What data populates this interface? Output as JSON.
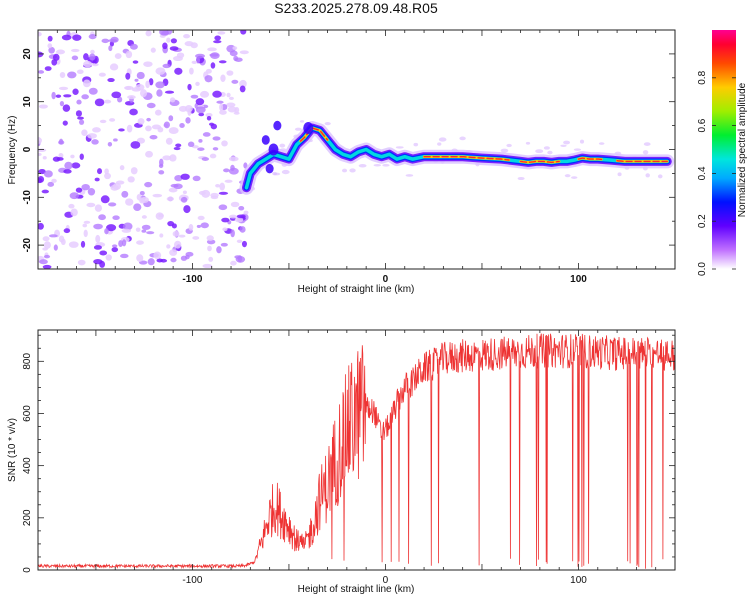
{
  "title": "S233.2025.278.09.48.R05",
  "chart_data": [
    {
      "type": "heatmap",
      "name": "spectrogram",
      "xlabel": "Height of straight line (km)",
      "ylabel": "Frequency (Hz)",
      "xlim": [
        -180,
        150
      ],
      "ylim": [
        -25,
        25
      ],
      "xticks": [
        -100,
        0,
        100
      ],
      "yticks": [
        -20,
        -10,
        0,
        10,
        20
      ],
      "noise_region_x": [
        -180,
        -72
      ],
      "ridge": {
        "x": [
          -72,
          -70,
          -66,
          -62,
          -58,
          -54,
          -50,
          -46,
          -42,
          -38,
          -34,
          -30,
          -26,
          -22,
          -18,
          -14,
          -10,
          -6,
          -2,
          2,
          6,
          10,
          14,
          20,
          30,
          40,
          50,
          60,
          66,
          70,
          74,
          78,
          82,
          86,
          90,
          94,
          98,
          102,
          106,
          110,
          116,
          124,
          134,
          146
        ],
        "y": [
          -8,
          -5,
          -3,
          -2,
          -1,
          -1.5,
          -2,
          1,
          2.5,
          4.5,
          4,
          2,
          0,
          -1,
          -1.5,
          -0.5,
          0,
          -1,
          -1.5,
          -1,
          -2,
          -1.5,
          -2,
          -1.5,
          -1.5,
          -1.5,
          -1.8,
          -2,
          -2.3,
          -2.5,
          -2.7,
          -2.5,
          -2.5,
          -2.7,
          -2.5,
          -2.5,
          -2.2,
          -1.8,
          -2,
          -2,
          -2.2,
          -2.5,
          -2.5,
          -2.5
        ]
      },
      "colorbar": {
        "label": "Normalized spectral amplitude",
        "range": [
          0,
          1
        ],
        "ticks": [
          "0.0",
          "0.2",
          "0.4",
          "0.6",
          "0.8"
        ]
      }
    },
    {
      "type": "line",
      "name": "snr",
      "xlabel": "Height of straight line (km)",
      "ylabel": "SNR (10 * v/v)",
      "xlim": [
        -180,
        150
      ],
      "ylim": [
        0,
        920
      ],
      "xticks": [
        -100,
        0,
        100
      ],
      "yticks": [
        0,
        200,
        400,
        600,
        800
      ],
      "color": "#ee3333",
      "envelope": {
        "x": [
          -180,
          -75,
          -72,
          -68,
          -64,
          -60,
          -57,
          -54,
          -50,
          -46,
          -42,
          -38,
          -34,
          -30,
          -26,
          -22,
          -18,
          -14,
          -10,
          -6,
          -2,
          2,
          6,
          10,
          14,
          18,
          22,
          26,
          30,
          40,
          60,
          80,
          100,
          120,
          140,
          150
        ],
        "y": [
          15,
          15,
          18,
          30,
          110,
          210,
          250,
          210,
          170,
          110,
          90,
          160,
          270,
          330,
          420,
          500,
          560,
          600,
          620,
          610,
          520,
          560,
          640,
          700,
          720,
          760,
          780,
          790,
          810,
          820,
          830,
          840,
          840,
          830,
          830,
          820
        ]
      },
      "dropout_start_x": -45
    }
  ]
}
